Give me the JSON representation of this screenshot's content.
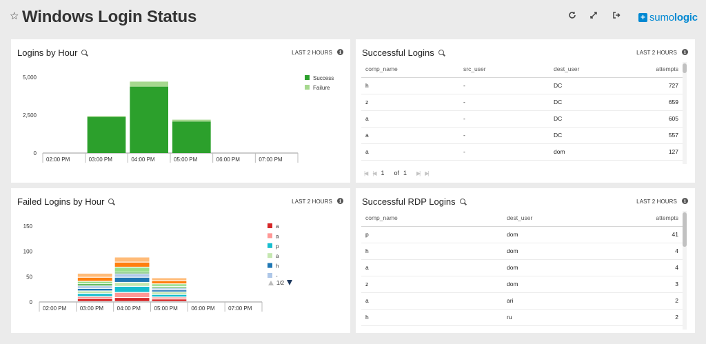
{
  "header": {
    "title": "Windows Login Status",
    "logo_text_light": "sumo",
    "logo_text_bold": "logic",
    "icons": [
      "star-icon",
      "refresh-icon",
      "fullscreen-icon",
      "share-icon"
    ]
  },
  "panels": {
    "logins_by_hour": {
      "title": "Logins by Hour",
      "range": "LAST 2 HOURS"
    },
    "successful_logins": {
      "title": "Successful Logins",
      "range": "LAST 2 HOURS",
      "columns": [
        "comp_name",
        "src_user",
        "dest_user",
        "attempts"
      ],
      "rows": [
        [
          "h",
          "-",
          "DC",
          "727"
        ],
        [
          "z",
          "-",
          "DC",
          "659"
        ],
        [
          "a",
          "-",
          "DC",
          "605"
        ],
        [
          "a",
          "-",
          "DC",
          "557"
        ],
        [
          "a",
          "-",
          "dom",
          "127"
        ]
      ],
      "pager": {
        "page": "1",
        "of_label": "of",
        "total": "1"
      }
    },
    "failed_logins_by_hour": {
      "title": "Failed Logins by Hour",
      "range": "LAST 2 HOURS",
      "legend_page": "1/2"
    },
    "successful_rdp_logins": {
      "title": "Successful RDP Logins",
      "range": "LAST 2 HOURS",
      "columns": [
        "comp_name",
        "dest_user",
        "attempts"
      ],
      "rows": [
        [
          "p",
          "dom",
          "41"
        ],
        [
          "h",
          "dom",
          "4"
        ],
        [
          "a",
          "dom",
          "4"
        ],
        [
          "z",
          "dom",
          "3"
        ],
        [
          "a",
          "ari",
          "2"
        ],
        [
          "h",
          "ru",
          "2"
        ]
      ]
    }
  },
  "chart_data": [
    {
      "type": "bar",
      "stacked": true,
      "categories": [
        "02:00 PM",
        "03:00 PM",
        "04:00 PM",
        "05:00 PM",
        "06:00 PM",
        "07:00 PM"
      ],
      "series": [
        {
          "name": "Success",
          "color": "#2ca02c",
          "values": [
            0,
            2380,
            4380,
            2080,
            0,
            0
          ]
        },
        {
          "name": "Failure",
          "color": "#a6d88f",
          "values": [
            0,
            60,
            330,
            120,
            0,
            0
          ]
        }
      ],
      "yticks": [
        "0",
        "2,500",
        "5,000"
      ],
      "ylim": [
        0,
        5000
      ],
      "legend": "right",
      "grid": false
    },
    {
      "type": "bar",
      "stacked": true,
      "categories": [
        "02:00 PM",
        "03:00 PM",
        "04:00 PM",
        "05:00 PM",
        "06:00 PM",
        "07:00 PM"
      ],
      "series": [
        {
          "name": "a",
          "color": "#d62728",
          "values": [
            0,
            6,
            8,
            5,
            0,
            0
          ]
        },
        {
          "name": "a",
          "color": "#ff9896",
          "values": [
            0,
            4,
            10,
            4,
            0,
            0
          ]
        },
        {
          "name": "p",
          "color": "#17becf",
          "values": [
            0,
            6,
            12,
            5,
            0,
            0
          ]
        },
        {
          "name": "a",
          "color": "#c5e7b0",
          "values": [
            0,
            5,
            8,
            5,
            0,
            0
          ]
        },
        {
          "name": "h",
          "color": "#1f77b4",
          "values": [
            0,
            5,
            10,
            4,
            0,
            0
          ]
        },
        {
          "name": "-",
          "color": "#aec7e8",
          "values": [
            0,
            5,
            7,
            4,
            0,
            0
          ]
        },
        {
          "color": "#2ca02c",
          "values": [
            0,
            4,
            3,
            3,
            0,
            0
          ]
        },
        {
          "color": "#98df8a",
          "values": [
            0,
            5,
            10,
            5,
            0,
            0
          ]
        },
        {
          "color": "#ff7f0e",
          "values": [
            0,
            8,
            10,
            6,
            0,
            0
          ]
        },
        {
          "color": "#ffbb78",
          "values": [
            0,
            8,
            10,
            6,
            0,
            0
          ]
        }
      ],
      "legend_labels": [
        "a",
        "a",
        "p",
        "a",
        "h",
        "-"
      ],
      "yticks": [
        "0",
        "50",
        "100",
        "150"
      ],
      "ylim": [
        0,
        150
      ],
      "legend": "right",
      "grid": false
    }
  ]
}
